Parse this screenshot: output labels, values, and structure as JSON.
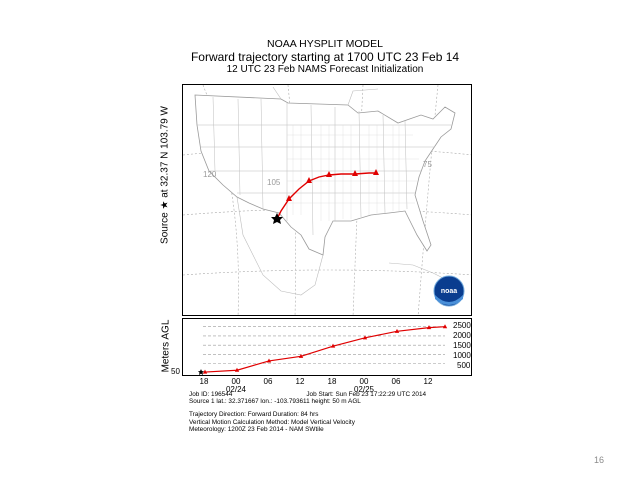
{
  "header": {
    "line1": "NOAA HYSPLIT MODEL",
    "line2": "Forward trajectory starting at 1700 UTC 23 Feb 14",
    "line3": "12 UTC 23 Feb     NAMS  Forecast Initialization"
  },
  "map": {
    "source_label": "Source ★ at   32.37 N   103.79 W",
    "longitude_labels": [
      "120",
      "105",
      "75"
    ],
    "logo_text": "noaa",
    "trajectory_color": "#e00000",
    "source_lat": 32.37,
    "source_lon": -103.79
  },
  "profile": {
    "axis_label": "Meters AGL",
    "start_height_label": "50",
    "y_ticks": [
      "2500",
      "2000",
      "1500",
      "1000",
      "500"
    ],
    "time_ticks": [
      "18",
      "00",
      "06",
      "12",
      "18",
      "00",
      "06",
      "12"
    ],
    "date_labels": [
      "02/24",
      "02/25"
    ]
  },
  "info": {
    "line1_left": "Job ID: 196544",
    "line1_right": "Job Start: Sun Feb 23 17:22:29 UTC 2014",
    "line2": "Source 1       lat.: 32.371667    lon.: -103.793611     height: 50 m AGL",
    "line3": "Trajectory Direction: Forward      Duration: 84 hrs",
    "line4": "Vertical Motion Calculation Method:       Model Vertical Velocity",
    "line5": "Meteorology: 1200Z 23 Feb 2014 - NAM SWtile"
  },
  "page_number": "16",
  "chart_data": {
    "type": "line",
    "title": "",
    "xlabel": "",
    "ylabel": "Meters AGL",
    "x": [
      "23 Feb 18",
      "24 Feb 00",
      "24 Feb 06",
      "24 Feb 12",
      "24 Feb 18",
      "25 Feb 00",
      "25 Feb 06",
      "25 Feb 12",
      "25 Feb 15"
    ],
    "ylim": [
      0,
      2700
    ],
    "series": [
      {
        "values": [
          50,
          150,
          650,
          900,
          1450,
          1900,
          2250,
          2450,
          2500
        ]
      }
    ]
  }
}
